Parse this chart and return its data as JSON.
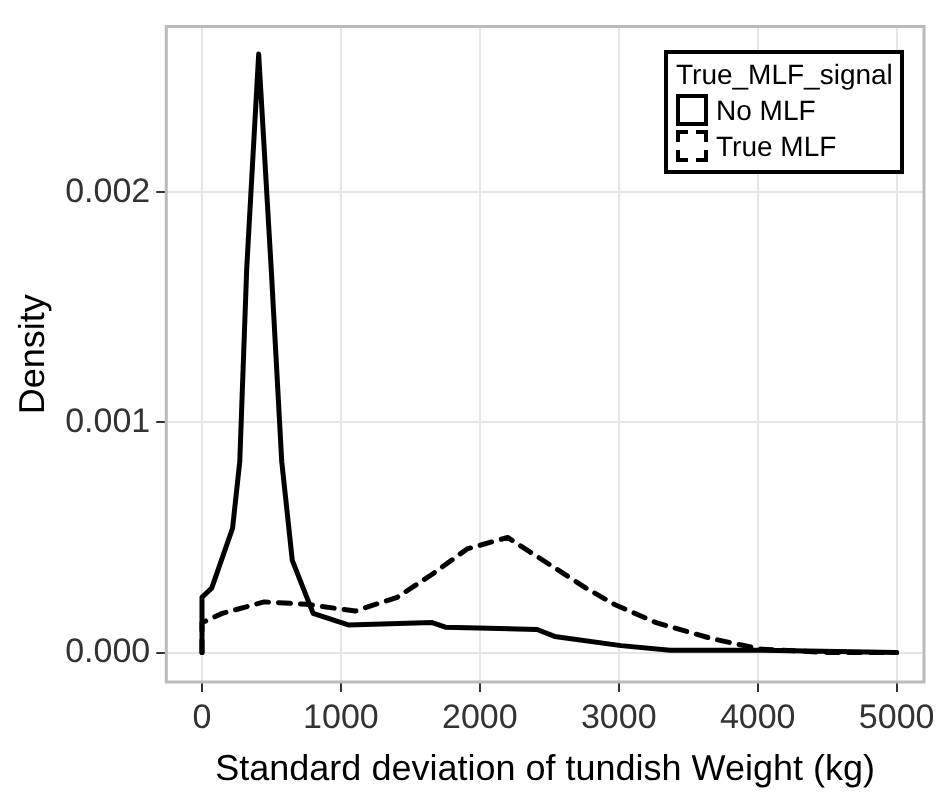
{
  "chart_data": {
    "type": "line",
    "xlabel": "Standard deviation of tundish Weight (kg)",
    "ylabel": "Density",
    "legend_title": "True_MLF_signal",
    "xlim": [
      -257,
      5197
    ],
    "ylim": [
      -0.000128,
      0.00272
    ],
    "xticks": [
      0,
      1000,
      2000,
      3000,
      4000,
      5000
    ],
    "yticks": [
      {
        "value": 0,
        "label": "0.000"
      },
      {
        "value": 0.001,
        "label": "0.001"
      },
      {
        "value": 0.002,
        "label": "0.002"
      }
    ],
    "grid": true,
    "legend": "top right",
    "marker": "none",
    "series": [
      {
        "name": "No MLF",
        "color": "#000000",
        "line_style": "solid",
        "x": [
          0,
          0,
          70,
          220,
          272,
          322,
          408,
          498,
          574,
          650,
          800,
          1053,
          1657,
          1752,
          2412,
          2538,
          3016,
          3369,
          4000,
          5000
        ],
        "values": [
          0,
          0.00024,
          0.00028,
          0.00054,
          0.00083,
          0.00167,
          0.0026,
          0.00167,
          0.00083,
          0.0004,
          0.00017,
          0.00012,
          0.00013,
          0.00011,
          0.0001,
          7e-05,
          3e-05,
          1e-05,
          1e-05,
          0
        ]
      },
      {
        "name": "True MLF",
        "color": "#000000",
        "line_style": "dashed",
        "x": [
          0,
          0,
          146,
          448,
          750,
          1103,
          1405,
          1657,
          1908,
          2200,
          2764,
          2966,
          3268,
          3671,
          4023,
          4500,
          5000
        ],
        "values": [
          0,
          0.00013,
          0.00017,
          0.00022,
          0.00021,
          0.00018,
          0.00024,
          0.00034,
          0.00045,
          0.0005,
          0.00028,
          0.00021,
          0.00013,
          6e-05,
          1.5e-05,
          0,
          0
        ]
      }
    ]
  }
}
